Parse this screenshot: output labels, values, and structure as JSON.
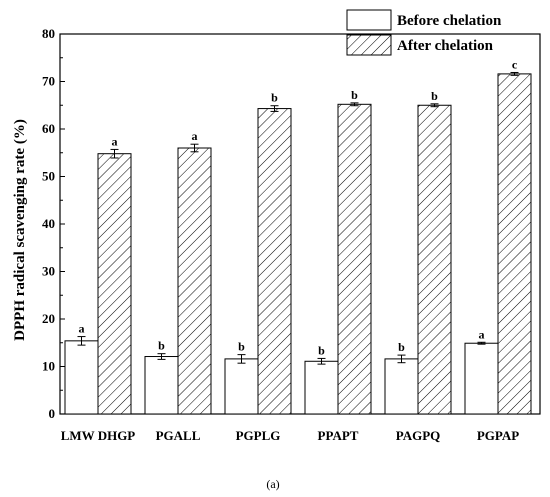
{
  "chart_data": {
    "type": "bar",
    "ylabel": "DPPH radical scavenging rate (%)",
    "ylim": [
      0,
      80
    ],
    "yticks": [
      0,
      10,
      20,
      30,
      40,
      50,
      60,
      70,
      80
    ],
    "categories": [
      "LMW DHGP",
      "PGALL",
      "PGPLG",
      "PPAPT",
      "PAGPQ",
      "PGPAP"
    ],
    "series": [
      {
        "name": "Before chelation",
        "fill": "#ffffff",
        "pattern": "none",
        "values": [
          15.4,
          12.1,
          11.6,
          11.1,
          11.6,
          14.9
        ],
        "errors": [
          0.9,
          0.6,
          0.9,
          0.6,
          0.8,
          0.2
        ],
        "labels": [
          "a",
          "b",
          "b",
          "b",
          "b",
          "a"
        ]
      },
      {
        "name": "After chelation",
        "fill": "#ffffff",
        "pattern": "diagonal-hatch",
        "values": [
          54.8,
          56.0,
          64.3,
          65.2,
          65.0,
          71.6
        ],
        "errors": [
          0.9,
          0.8,
          0.6,
          0.3,
          0.3,
          0.3
        ],
        "labels": [
          "a",
          "a",
          "b",
          "b",
          "b",
          "c"
        ]
      }
    ],
    "legend_position": "top-right",
    "grid": false
  },
  "caption": "(a)"
}
